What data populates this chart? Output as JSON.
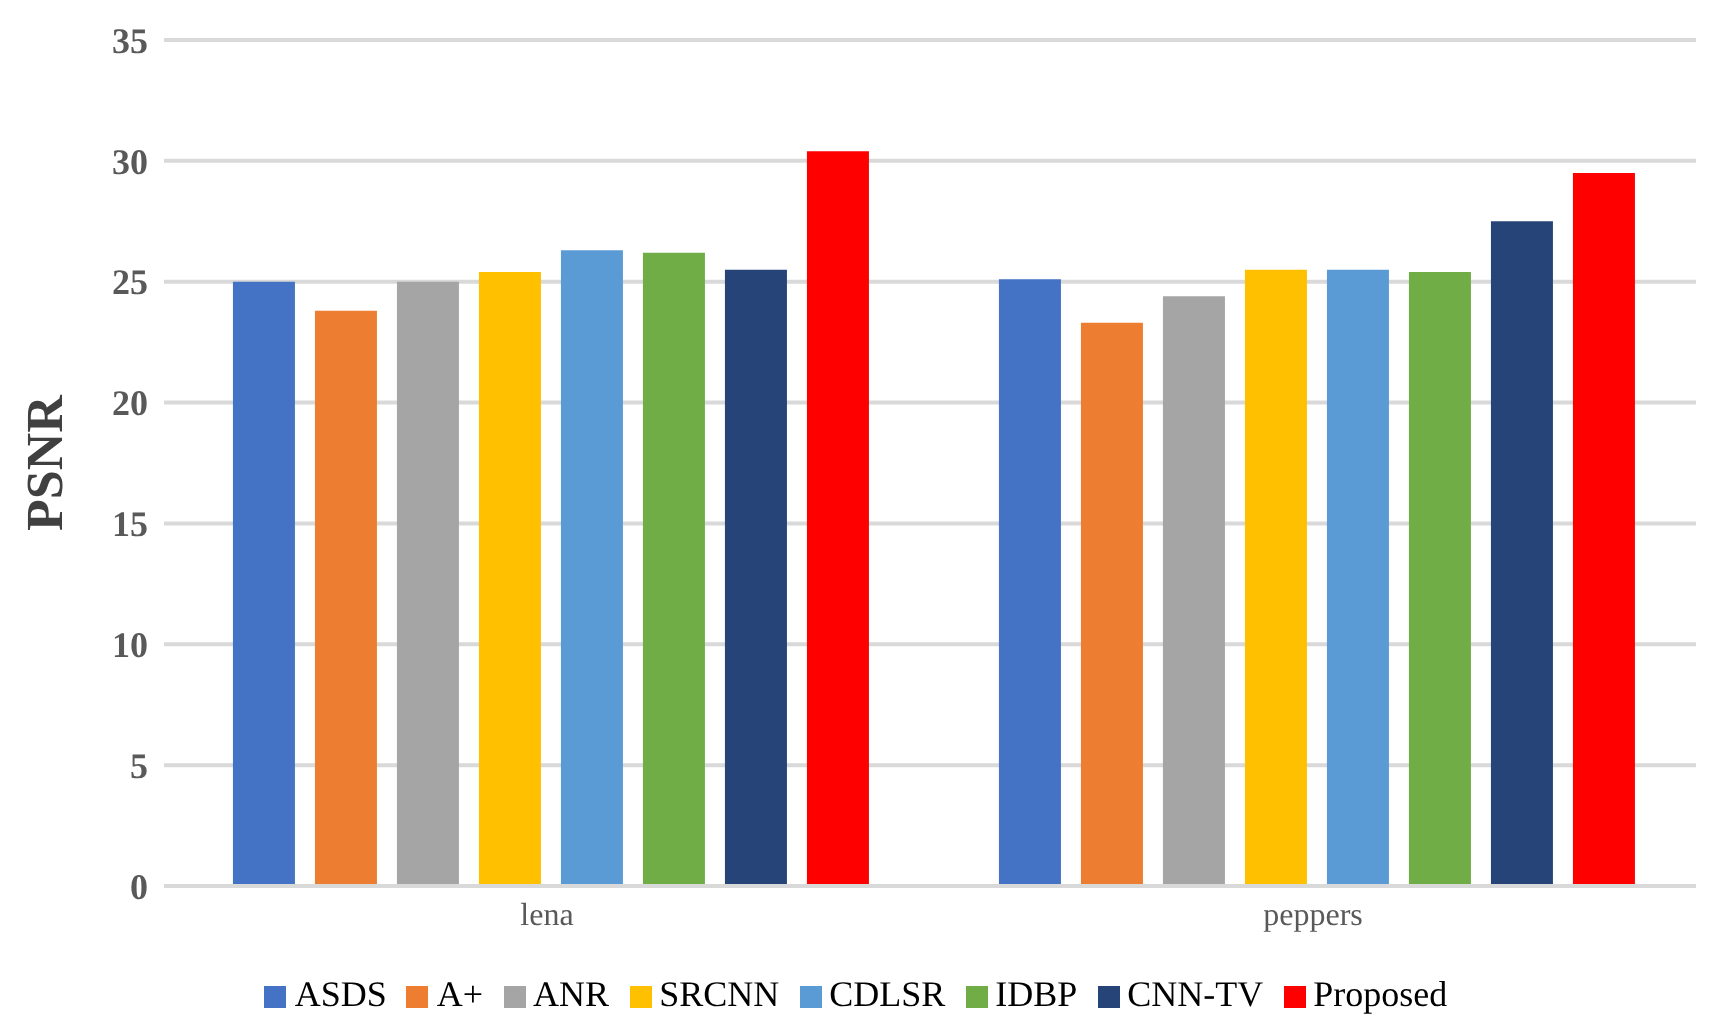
{
  "chart_data": {
    "type": "bar",
    "ylabel": "PSNR",
    "categories": [
      "lena",
      "peppers"
    ],
    "series": [
      {
        "name": "ASDS",
        "color": "#4472c4",
        "values": [
          25.0,
          25.1
        ]
      },
      {
        "name": "A+",
        "color": "#ed7d31",
        "values": [
          23.8,
          23.3
        ]
      },
      {
        "name": "ANR",
        "color": "#a5a5a5",
        "values": [
          25.0,
          24.4
        ]
      },
      {
        "name": "SRCNN",
        "color": "#ffc000",
        "values": [
          25.4,
          25.5
        ]
      },
      {
        "name": "CDLSR",
        "color": "#5b9bd5",
        "values": [
          26.3,
          25.5
        ]
      },
      {
        "name": "IDBP",
        "color": "#70ad47",
        "values": [
          26.2,
          25.4
        ]
      },
      {
        "name": "CNN-TV",
        "color": "#264478",
        "values": [
          25.5,
          27.5
        ]
      },
      {
        "name": "Proposed",
        "color": "#ff0000",
        "values": [
          30.4,
          29.5
        ]
      }
    ],
    "ylim": [
      0,
      35
    ],
    "yticks": [
      0,
      5,
      10,
      15,
      20,
      25,
      30,
      35
    ],
    "grid": "y",
    "legend": "bottom"
  }
}
